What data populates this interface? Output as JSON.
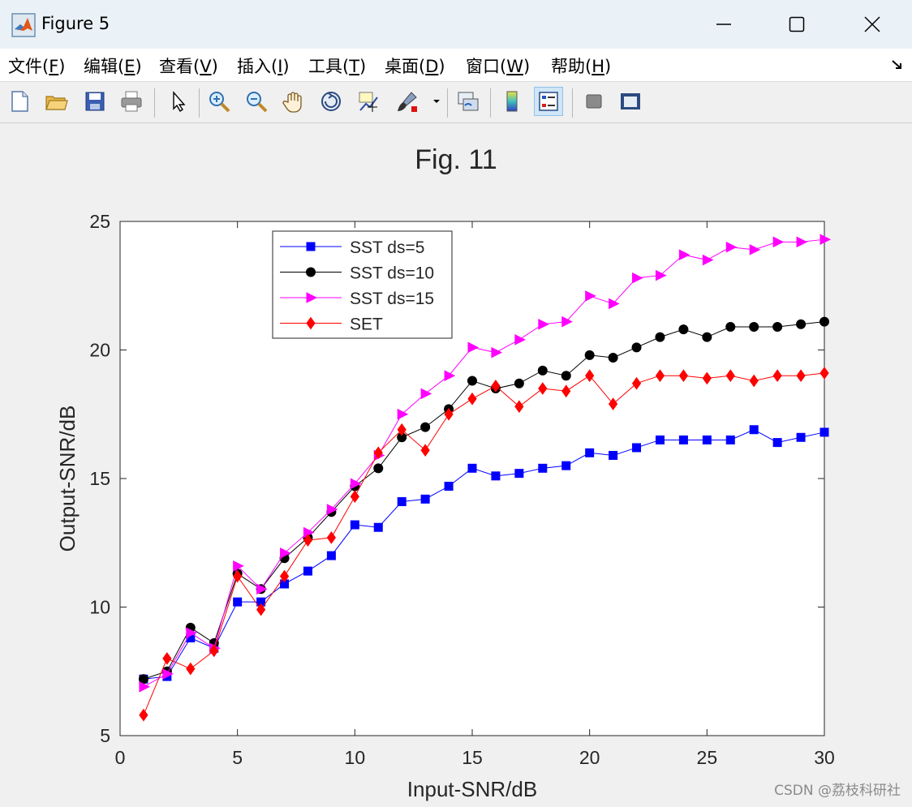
{
  "window": {
    "title": "Figure 5",
    "minimize": "minimize",
    "maximize": "maximize",
    "close": "close"
  },
  "menu": [
    {
      "label": "文件(",
      "key": "F",
      "end": ")"
    },
    {
      "label": "编辑(",
      "key": "E",
      "end": ")"
    },
    {
      "label": "查看(",
      "key": "V",
      "end": ")"
    },
    {
      "label": "插入(",
      "key": "I",
      "end": ")"
    },
    {
      "label": "工具(",
      "key": "T",
      "end": ")"
    },
    {
      "label": "桌面(",
      "key": "D",
      "end": ")"
    },
    {
      "label": "窗口(",
      "key": "W",
      "end": ")"
    },
    {
      "label": "帮助(",
      "key": "H",
      "end": ")"
    }
  ],
  "toolbar": {
    "icons": [
      "new-figure-icon",
      "open-file-icon",
      "save-icon",
      "print-icon",
      "pointer-icon",
      "zoom-in-icon",
      "zoom-out-icon",
      "pan-hand-icon",
      "rotate-3d-icon",
      "data-cursor-icon",
      "brush-icon",
      "link-plot-icon",
      "colorbar-icon",
      "legend-icon",
      "hide-plot-tools-icon",
      "show-plot-tools-icon"
    ]
  },
  "watermark": "CSDN @荔枝科研社",
  "chart_data": {
    "type": "line",
    "title": "Fig. 11",
    "xlabel": "Input-SNR/dB",
    "ylabel": "Output-SNR/dB",
    "xlim": [
      0,
      30
    ],
    "ylim": [
      5,
      25
    ],
    "xticks": [
      0,
      5,
      10,
      15,
      20,
      25,
      30
    ],
    "yticks": [
      5,
      10,
      15,
      20,
      25
    ],
    "grid": false,
    "legend_position": "top-left",
    "x": [
      1,
      2,
      3,
      4,
      5,
      6,
      7,
      8,
      9,
      10,
      11,
      12,
      13,
      14,
      15,
      16,
      17,
      18,
      19,
      20,
      21,
      22,
      23,
      24,
      25,
      26,
      27,
      28,
      29,
      30
    ],
    "series": [
      {
        "name": "SST ds=5",
        "color": "#0000ff",
        "marker": "square",
        "values": [
          7.2,
          7.3,
          8.8,
          8.4,
          10.2,
          10.2,
          10.9,
          11.4,
          12.0,
          13.2,
          13.1,
          14.1,
          14.2,
          14.7,
          15.4,
          15.1,
          15.2,
          15.4,
          15.5,
          16.0,
          15.9,
          16.2,
          16.5,
          16.5,
          16.5,
          16.5,
          16.9,
          16.4,
          16.6,
          16.8
        ]
      },
      {
        "name": "SST ds=10",
        "color": "#000000",
        "marker": "circle",
        "values": [
          7.2,
          7.5,
          9.2,
          8.6,
          11.3,
          10.7,
          11.9,
          12.7,
          13.7,
          14.7,
          15.4,
          16.6,
          17.0,
          17.7,
          18.8,
          18.5,
          18.7,
          19.2,
          19.0,
          19.8,
          19.7,
          20.1,
          20.5,
          20.8,
          20.5,
          20.9,
          20.9,
          20.9,
          21.0,
          21.1
        ]
      },
      {
        "name": "SST ds=15",
        "color": "#ff00ff",
        "marker": "triangle-right",
        "values": [
          6.9,
          7.4,
          9.0,
          8.4,
          11.6,
          10.7,
          12.1,
          12.9,
          13.8,
          14.8,
          15.9,
          17.5,
          18.3,
          19.0,
          20.1,
          19.9,
          20.4,
          21.0,
          21.1,
          22.1,
          21.8,
          22.8,
          22.9,
          23.7,
          23.5,
          24.0,
          23.9,
          24.2,
          24.2,
          24.3
        ]
      },
      {
        "name": "SET",
        "color": "#ff0000",
        "marker": "diamond",
        "values": [
          5.8,
          8.0,
          7.6,
          8.3,
          11.2,
          9.9,
          11.2,
          12.6,
          12.7,
          14.3,
          16.0,
          16.9,
          16.1,
          17.5,
          18.1,
          18.6,
          17.8,
          18.5,
          18.4,
          19.0,
          17.9,
          18.7,
          19.0,
          19.0,
          18.9,
          19.0,
          18.8,
          19.0,
          19.0,
          19.1
        ]
      }
    ]
  }
}
